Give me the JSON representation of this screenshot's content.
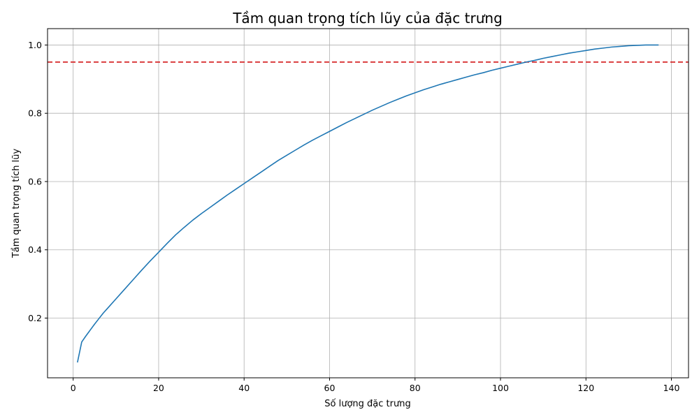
{
  "chart_data": {
    "type": "line",
    "title": "Tầm quan trọng tích lũy của đặc trưng",
    "xlabel": "Số lượng đặc trưng",
    "ylabel": "Tầm quan trọng tích lũy",
    "xlim": [
      -6,
      144
    ],
    "ylim": [
      0.025,
      1.048
    ],
    "x_ticks": [
      0,
      20,
      40,
      60,
      80,
      100,
      120,
      140
    ],
    "y_ticks": [
      0.2,
      0.4,
      0.6,
      0.8,
      1.0
    ],
    "x_tick_labels": [
      "0",
      "20",
      "40",
      "60",
      "80",
      "100",
      "120",
      "140"
    ],
    "y_tick_labels": [
      "0.2",
      "0.4",
      "0.6",
      "0.8",
      "1.0"
    ],
    "grid": true,
    "series": [
      {
        "color": "#1f77b4",
        "x": [
          1,
          2,
          3,
          4,
          5,
          6,
          7,
          8,
          10,
          12,
          14,
          16,
          18,
          20,
          22,
          24,
          26,
          28,
          30,
          32,
          34,
          36,
          38,
          40,
          42,
          44,
          46,
          48,
          50,
          52,
          54,
          56,
          58,
          60,
          62,
          64,
          66,
          68,
          70,
          72,
          74,
          76,
          78,
          80,
          82,
          84,
          86,
          88,
          90,
          92,
          94,
          96,
          98,
          100,
          102,
          104,
          106,
          108,
          110,
          112,
          114,
          116,
          118,
          120,
          122,
          124,
          126,
          128,
          130,
          132,
          134,
          137
        ],
        "y": [
          0.07,
          0.13,
          0.148,
          0.165,
          0.182,
          0.198,
          0.214,
          0.228,
          0.256,
          0.284,
          0.312,
          0.34,
          0.367,
          0.393,
          0.419,
          0.444,
          0.466,
          0.487,
          0.506,
          0.524,
          0.542,
          0.56,
          0.577,
          0.594,
          0.611,
          0.628,
          0.645,
          0.662,
          0.677,
          0.692,
          0.707,
          0.721,
          0.734,
          0.747,
          0.76,
          0.773,
          0.785,
          0.797,
          0.809,
          0.82,
          0.831,
          0.841,
          0.851,
          0.86,
          0.869,
          0.877,
          0.885,
          0.892,
          0.899,
          0.906,
          0.913,
          0.919,
          0.926,
          0.932,
          0.938,
          0.944,
          0.95,
          0.955,
          0.961,
          0.966,
          0.971,
          0.976,
          0.98,
          0.984,
          0.988,
          0.991,
          0.994,
          0.996,
          0.998,
          0.999,
          1.0,
          1.0
        ]
      }
    ],
    "reference_line": {
      "axis": "y",
      "value": 0.95,
      "color": "#d62728",
      "style": "dashed"
    }
  }
}
